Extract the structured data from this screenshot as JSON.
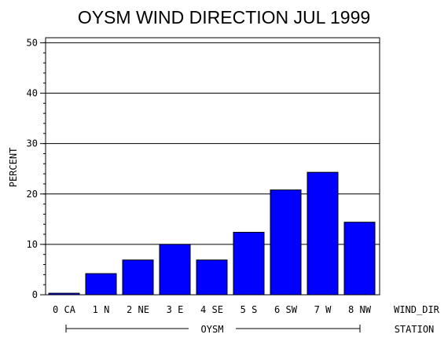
{
  "chart_data": {
    "type": "bar",
    "title": "OYSM WIND DIRECTION JUL 1999",
    "ylabel": "PERCENT",
    "x_dim_label": "WIND_DIR",
    "group_dim_label": "STATION",
    "group_name": "OYSM",
    "ylim": [
      0,
      51
    ],
    "yticks": [
      0,
      10,
      20,
      30,
      40,
      50
    ],
    "grid": true,
    "categories": [
      "0 CA",
      "1 N",
      "2 NE",
      "3 E",
      "4 SE",
      "5 S",
      "6 SW",
      "7 W",
      "8 NW"
    ],
    "values": [
      0.3,
      4.2,
      6.9,
      10.0,
      6.9,
      12.4,
      20.8,
      24.3,
      14.4
    ],
    "bar_color": "#0000ff"
  }
}
